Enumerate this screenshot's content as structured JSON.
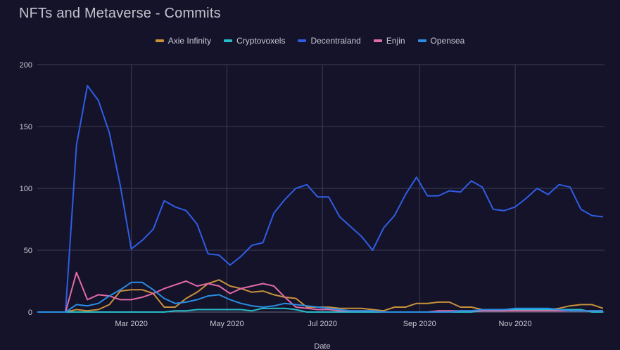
{
  "colors": {
    "background": "#14132a",
    "grid": "#3d3d52",
    "text": "#c9c9d3"
  },
  "chart_data": {
    "type": "line",
    "title": "NFTs and Metaverse - Commits",
    "xlabel": "Date",
    "ylabel": "",
    "ylim": [
      0,
      200
    ],
    "yticks": [
      0,
      50,
      100,
      150,
      200
    ],
    "xlim": [
      "2020-01-01",
      "2020-12-28"
    ],
    "xticks": [
      {
        "date": "2020-03-01",
        "label": "Mar 2020"
      },
      {
        "date": "2020-05-01",
        "label": "May 2020"
      },
      {
        "date": "2020-07-01",
        "label": "Jul 2020"
      },
      {
        "date": "2020-09-01",
        "label": "Sep 2020"
      },
      {
        "date": "2020-11-01",
        "label": "Nov 2020"
      }
    ],
    "legend_position": "top",
    "grid": true,
    "x": [
      "2020-01-05",
      "2020-01-12",
      "2020-01-19",
      "2020-01-26",
      "2020-02-02",
      "2020-02-09",
      "2020-02-16",
      "2020-02-23",
      "2020-03-01",
      "2020-03-08",
      "2020-03-15",
      "2020-03-22",
      "2020-03-29",
      "2020-04-05",
      "2020-04-12",
      "2020-04-19",
      "2020-04-26",
      "2020-05-03",
      "2020-05-10",
      "2020-05-17",
      "2020-05-24",
      "2020-05-31",
      "2020-06-07",
      "2020-06-14",
      "2020-06-21",
      "2020-06-28",
      "2020-07-05",
      "2020-07-12",
      "2020-07-19",
      "2020-07-26",
      "2020-08-02",
      "2020-08-09",
      "2020-08-16",
      "2020-08-23",
      "2020-08-30",
      "2020-09-06",
      "2020-09-13",
      "2020-09-20",
      "2020-09-27",
      "2020-10-04",
      "2020-10-11",
      "2020-10-18",
      "2020-10-25",
      "2020-11-01",
      "2020-11-08",
      "2020-11-15",
      "2020-11-22",
      "2020-11-29",
      "2020-12-06",
      "2020-12-13",
      "2020-12-20",
      "2020-12-27"
    ],
    "series": [
      {
        "name": "Axie Infinity",
        "color": "#c8913a",
        "values": [
          0,
          0,
          0,
          2,
          1,
          2,
          6,
          17,
          18,
          18,
          15,
          4,
          4,
          11,
          16,
          23,
          26,
          21,
          19,
          16,
          17,
          14,
          12,
          11,
          4,
          4,
          4,
          3,
          3,
          3,
          2,
          1,
          4,
          4,
          7,
          7,
          8,
          8,
          4,
          4,
          2,
          2,
          1,
          2,
          2,
          2,
          2,
          3,
          5,
          6,
          6,
          3
        ]
      },
      {
        "name": "Cryptovoxels",
        "color": "#26bcc9",
        "values": [
          0,
          0,
          0,
          0,
          0,
          0,
          0,
          0,
          0,
          0,
          0,
          0,
          1,
          1,
          2,
          2,
          2,
          2,
          2,
          1,
          3,
          3,
          3,
          2,
          0,
          0,
          0,
          0,
          0,
          0,
          0,
          0,
          0,
          0,
          0,
          0,
          0,
          0,
          0,
          0,
          1,
          1,
          1,
          2,
          2,
          2,
          2,
          2,
          2,
          2,
          0,
          0
        ]
      },
      {
        "name": "Decentraland",
        "color": "#2f5de3",
        "values": [
          0,
          0,
          0,
          135,
          183,
          171,
          145,
          102,
          51,
          58,
          67,
          90,
          85,
          82,
          71,
          47,
          46,
          38,
          45,
          54,
          56,
          80,
          91,
          100,
          103,
          93,
          93,
          77,
          69,
          61,
          50,
          68,
          78,
          95,
          109,
          94,
          94,
          98,
          97,
          106,
          101,
          83,
          82,
          85,
          92,
          100,
          95,
          103,
          101,
          83,
          78,
          77
        ]
      },
      {
        "name": "Enjin",
        "color": "#e46aa8",
        "values": [
          0,
          0,
          0,
          32,
          10,
          14,
          13,
          10,
          10,
          12,
          15,
          19,
          22,
          25,
          21,
          23,
          21,
          15,
          19,
          21,
          23,
          21,
          12,
          4,
          3,
          2,
          2,
          1,
          1,
          1,
          1,
          0,
          0,
          0,
          0,
          0,
          1,
          1,
          1,
          1,
          1,
          1,
          1,
          1,
          1,
          1,
          1,
          1,
          1,
          1,
          1,
          1
        ]
      },
      {
        "name": "Opensea",
        "color": "#2a8de4",
        "values": [
          0,
          0,
          0,
          6,
          5,
          7,
          13,
          18,
          24,
          24,
          18,
          11,
          7,
          8,
          10,
          13,
          14,
          10,
          7,
          5,
          4,
          5,
          7,
          6,
          5,
          4,
          3,
          2,
          1,
          1,
          1,
          0,
          0,
          0,
          0,
          0,
          0,
          0,
          1,
          1,
          2,
          2,
          2,
          3,
          3,
          3,
          3,
          2,
          1,
          1,
          1,
          1
        ]
      }
    ]
  }
}
